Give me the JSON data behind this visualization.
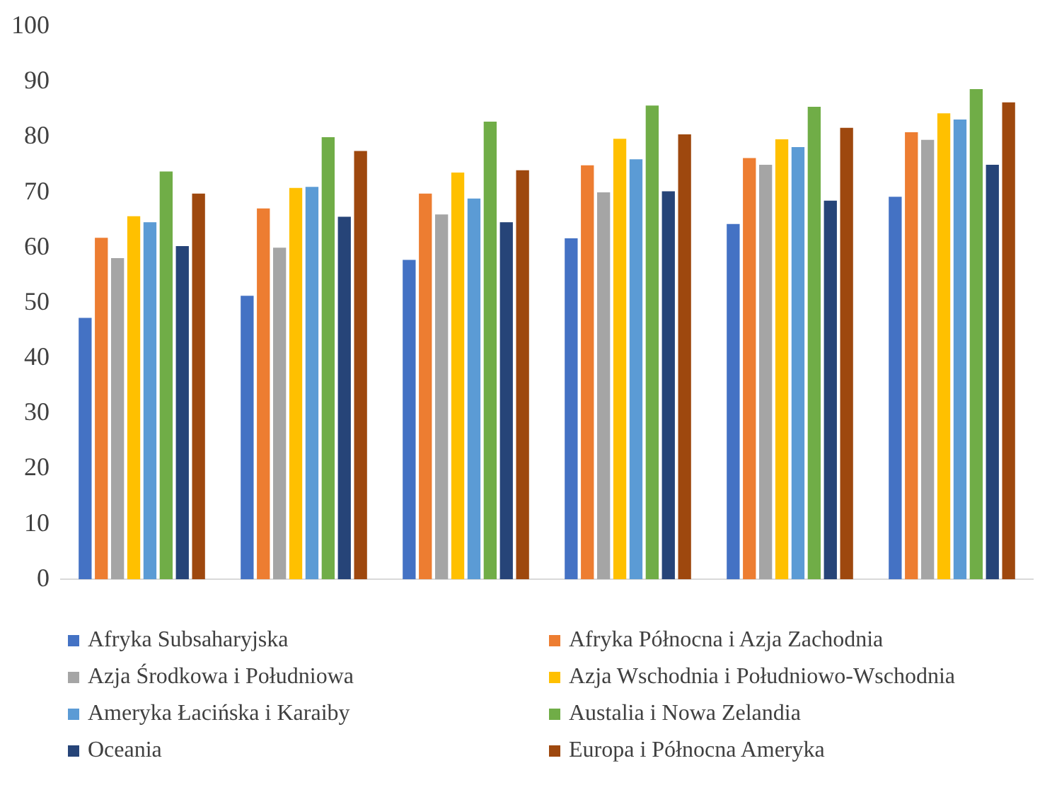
{
  "chart_data": {
    "type": "bar",
    "categories": [
      null,
      null,
      null,
      null,
      null,
      null
    ],
    "series": [
      {
        "name": "Afryka Subsaharyjska",
        "color": "#4472c4",
        "values": [
          47.3,
          51.3,
          57.8,
          61.7,
          64.3,
          69.2
        ]
      },
      {
        "name": "Afryka Północna i Azja Zachodnia",
        "color": "#ed7d31",
        "values": [
          61.8,
          67.1,
          69.8,
          74.9,
          76.2,
          80.9
        ]
      },
      {
        "name": "Azja Środkowa i Południowa",
        "color": "#a5a5a5",
        "values": [
          58.1,
          60.0,
          66.0,
          70.0,
          75.0,
          79.5
        ]
      },
      {
        "name": "Azja Wschodnia i Południowo-Wschodnia",
        "color": "#ffc000",
        "values": [
          65.7,
          70.8,
          73.6,
          79.7,
          79.6,
          84.3
        ]
      },
      {
        "name": "Ameryka Łacińska i Karaiby",
        "color": "#5b9bd5",
        "values": [
          64.6,
          71.0,
          68.9,
          76.0,
          78.2,
          83.2
        ]
      },
      {
        "name": "Austalia i Nowa Zelandia",
        "color": "#70ad47",
        "values": [
          73.8,
          80.0,
          82.8,
          85.7,
          85.5,
          88.7
        ]
      },
      {
        "name": "Oceania",
        "color": "#264478",
        "values": [
          60.3,
          65.6,
          64.6,
          70.2,
          68.5,
          75.0
        ]
      },
      {
        "name": "Europa i Północna Ameryka",
        "color": "#9e480e",
        "values": [
          69.8,
          77.5,
          74.0,
          80.5,
          81.7,
          86.3
        ]
      }
    ],
    "ylim": [
      0,
      100
    ],
    "yticks": [
      0,
      10,
      20,
      30,
      40,
      50,
      60,
      70,
      80,
      90,
      100
    ],
    "grid": false,
    "legend": "bottom"
  }
}
